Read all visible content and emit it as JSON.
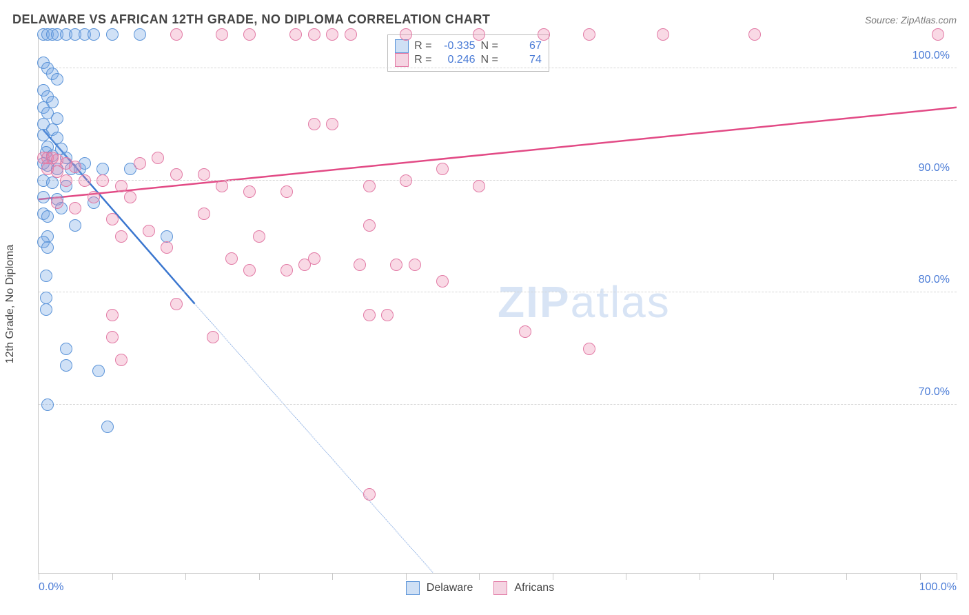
{
  "title": "DELAWARE VS AFRICAN 12TH GRADE, NO DIPLOMA CORRELATION CHART",
  "source_label": "Source: ZipAtlas.com",
  "ylabel": "12th Grade, No Diploma",
  "watermark_bold": "ZIP",
  "watermark_light": "atlas",
  "chart": {
    "type": "scatter",
    "xlim": [
      0,
      100
    ],
    "ylim": [
      55,
      103
    ],
    "x_tick_positions": [
      0,
      8,
      16,
      24,
      32,
      40,
      48,
      56,
      64,
      72,
      80,
      88,
      96,
      100
    ],
    "x_tick_labels": {
      "0": "0.0%",
      "100": "100.0%"
    },
    "y_gridlines": [
      70,
      80,
      90,
      100
    ],
    "y_tick_labels": {
      "70": "70.0%",
      "80": "80.0%",
      "90": "90.0%",
      "100": "100.0%"
    },
    "grid_color": "#d5d5d5",
    "axis_color": "#c8c8c8",
    "background_color": "#ffffff",
    "marker_radius": 9,
    "marker_stroke_width": 1.2,
    "series": [
      {
        "name": "Delaware",
        "fill": "rgba(120,170,230,0.35)",
        "stroke": "#5a93d8",
        "swatch_fill": "#cfe0f5",
        "swatch_stroke": "#5a93d8",
        "R": "-0.335",
        "N": "67",
        "trend": {
          "x1": 0.5,
          "y1": 94.5,
          "x2": 17,
          "y2": 79,
          "extrap_x2": 43,
          "extrap_y2": 55,
          "color": "#3a76cf",
          "width": 2.5
        },
        "points": [
          [
            0.5,
            103
          ],
          [
            1,
            103
          ],
          [
            1.5,
            103
          ],
          [
            2,
            103
          ],
          [
            3,
            103
          ],
          [
            4,
            103
          ],
          [
            5,
            103
          ],
          [
            6,
            103
          ],
          [
            8,
            103
          ],
          [
            11,
            103
          ],
          [
            0.5,
            100.5
          ],
          [
            1,
            100
          ],
          [
            1.5,
            99.5
          ],
          [
            2,
            99
          ],
          [
            0.5,
            98
          ],
          [
            1,
            97.5
          ],
          [
            1.5,
            97
          ],
          [
            0.5,
            96.5
          ],
          [
            1,
            96
          ],
          [
            2,
            95.5
          ],
          [
            0.5,
            95
          ],
          [
            1.5,
            94.5
          ],
          [
            0.5,
            94
          ],
          [
            2,
            93.8
          ],
          [
            1,
            93
          ],
          [
            2.5,
            92.8
          ],
          [
            0.8,
            92.5
          ],
          [
            1.5,
            92.2
          ],
          [
            3,
            92
          ],
          [
            0.5,
            91.5
          ],
          [
            1,
            91.3
          ],
          [
            2,
            91
          ],
          [
            3.5,
            91
          ],
          [
            4.5,
            91
          ],
          [
            7,
            91
          ],
          [
            0.5,
            90
          ],
          [
            1.5,
            89.8
          ],
          [
            3,
            89.5
          ],
          [
            5,
            91.5
          ],
          [
            10,
            91
          ],
          [
            0.5,
            88.5
          ],
          [
            2,
            88.3
          ],
          [
            6,
            88
          ],
          [
            0.5,
            87
          ],
          [
            1,
            86.8
          ],
          [
            2.5,
            87.5
          ],
          [
            4,
            86
          ],
          [
            1,
            85
          ],
          [
            0.5,
            84.5
          ],
          [
            1,
            84
          ],
          [
            14,
            85
          ],
          [
            0.8,
            81.5
          ],
          [
            0.8,
            79.5
          ],
          [
            0.8,
            78.5
          ],
          [
            3,
            75
          ],
          [
            3,
            73.5
          ],
          [
            6.5,
            73
          ],
          [
            1,
            70
          ],
          [
            7.5,
            68
          ]
        ]
      },
      {
        "name": "Africans",
        "fill": "rgba(235,130,170,0.30)",
        "stroke": "#e27aa5",
        "swatch_fill": "#f5d4e2",
        "swatch_stroke": "#e27aa5",
        "R": "0.246",
        "N": "74",
        "trend": {
          "x1": 0,
          "y1": 88.3,
          "x2": 100,
          "y2": 96.5,
          "color": "#e24a85",
          "width": 2.5
        },
        "points": [
          [
            15,
            103
          ],
          [
            20,
            103
          ],
          [
            23,
            103
          ],
          [
            28,
            103
          ],
          [
            30,
            103
          ],
          [
            32,
            103
          ],
          [
            34,
            103
          ],
          [
            40,
            103
          ],
          [
            48,
            103
          ],
          [
            55,
            103
          ],
          [
            60,
            103
          ],
          [
            68,
            103
          ],
          [
            78,
            103
          ],
          [
            98,
            103
          ],
          [
            0.5,
            92
          ],
          [
            1,
            92
          ],
          [
            1.5,
            92
          ],
          [
            2,
            91.8
          ],
          [
            1,
            91
          ],
          [
            2,
            90.8
          ],
          [
            3,
            91.5
          ],
          [
            4,
            91.2
          ],
          [
            3,
            90
          ],
          [
            5,
            90
          ],
          [
            7,
            90
          ],
          [
            9,
            89.5
          ],
          [
            11,
            91.5
          ],
          [
            13,
            92
          ],
          [
            15,
            90.5
          ],
          [
            18,
            90.5
          ],
          [
            2,
            88
          ],
          [
            4,
            87.5
          ],
          [
            6,
            88.5
          ],
          [
            8,
            86.5
          ],
          [
            10,
            88.5
          ],
          [
            12,
            85.5
          ],
          [
            30,
            95
          ],
          [
            32,
            95
          ],
          [
            9,
            85
          ],
          [
            20,
            89.5
          ],
          [
            23,
            89
          ],
          [
            27,
            89
          ],
          [
            36,
            89.5
          ],
          [
            14,
            84
          ],
          [
            18,
            87
          ],
          [
            24,
            85
          ],
          [
            36,
            86
          ],
          [
            40,
            90
          ],
          [
            44,
            91
          ],
          [
            48,
            89.5
          ],
          [
            15,
            79
          ],
          [
            21,
            83
          ],
          [
            23,
            82
          ],
          [
            27,
            82
          ],
          [
            29,
            82.5
          ],
          [
            30,
            83
          ],
          [
            35,
            82.5
          ],
          [
            39,
            82.5
          ],
          [
            41,
            82.5
          ],
          [
            44,
            81
          ],
          [
            8,
            78
          ],
          [
            8,
            76
          ],
          [
            9,
            74
          ],
          [
            36,
            78
          ],
          [
            38,
            78
          ],
          [
            19,
            76
          ],
          [
            53,
            76.5
          ],
          [
            60,
            75
          ],
          [
            36,
            62
          ]
        ]
      }
    ]
  },
  "stats_box": {
    "r_label": "R =",
    "n_label": "N ="
  },
  "legend": {
    "items": [
      "Delaware",
      "Africans"
    ]
  }
}
